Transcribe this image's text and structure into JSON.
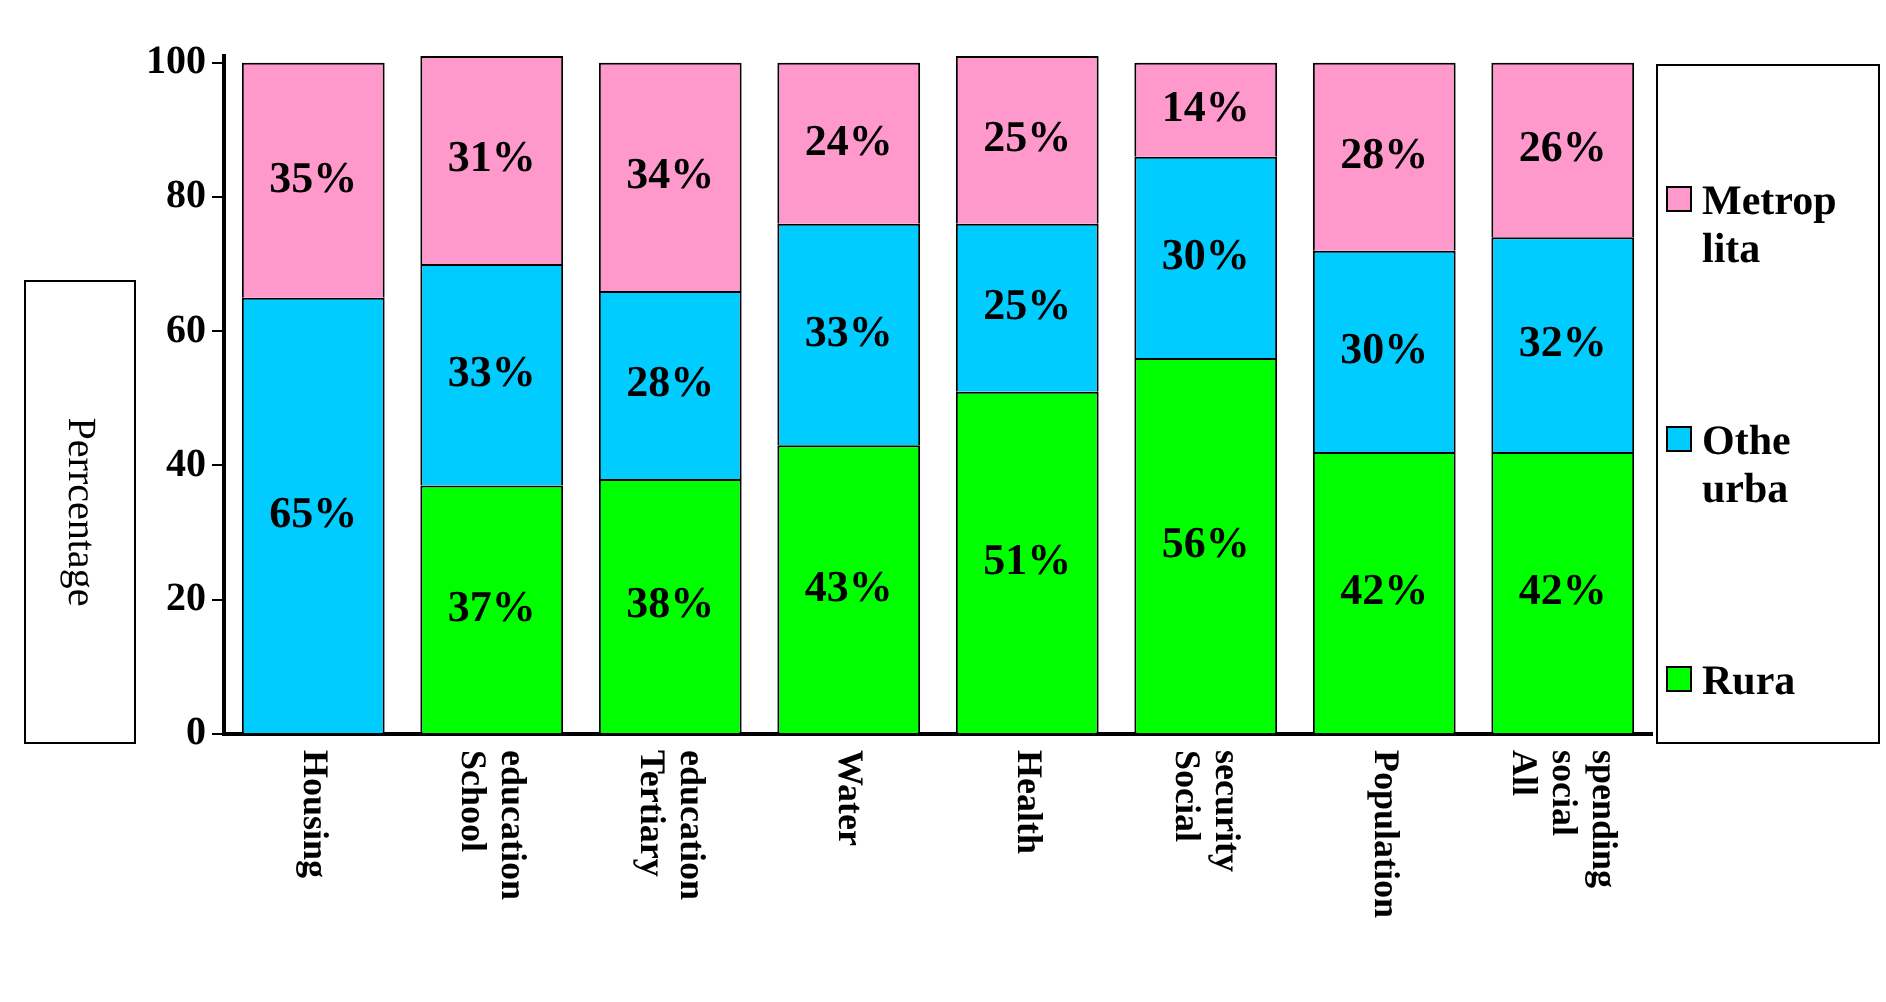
{
  "chart_data": {
    "type": "bar",
    "stacked": true,
    "ylabel": "Perrcentage",
    "categories": [
      "Housing",
      "School education",
      "Tertiary education",
      "Water",
      "Health",
      "Social security",
      "Population",
      "All social spending"
    ],
    "series": [
      {
        "name": "Rura",
        "color": "#00ff00",
        "values": [
          0,
          37,
          38,
          43,
          51,
          56,
          42,
          42
        ],
        "value_labels": [
          null,
          "37%",
          "38%",
          "43%",
          "51%",
          "56%",
          "42%",
          "42%"
        ]
      },
      {
        "name": "Othe urba",
        "color": "#00ccff",
        "values": [
          65,
          33,
          28,
          33,
          25,
          30,
          30,
          32
        ],
        "value_labels": [
          "65%",
          "33%",
          "28%",
          "33%",
          "25%",
          "30%",
          "30%",
          "32%"
        ]
      },
      {
        "name": "Metrop lita",
        "color": "#ff99cc",
        "values": [
          35,
          31,
          34,
          24,
          25,
          14,
          28,
          26
        ],
        "value_labels": [
          "35%",
          "31%",
          "34%",
          "24%",
          "25%",
          "14%",
          "28%",
          "26%"
        ]
      }
    ],
    "ylim": [
      0,
      101
    ],
    "yticks": [
      0,
      20,
      40,
      60,
      80,
      100
    ],
    "grid": false,
    "legend": "right"
  }
}
